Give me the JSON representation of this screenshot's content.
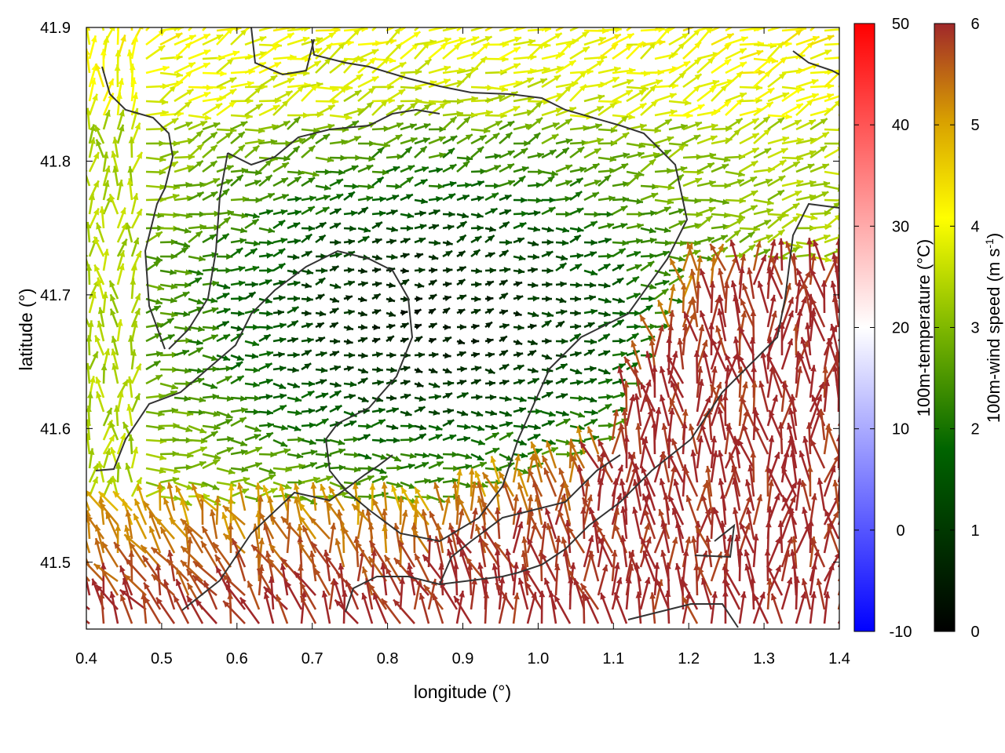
{
  "chart_data": {
    "type": "vector-field",
    "xlabel": "longitude (°)",
    "ylabel": "latitude (°)",
    "xlim": [
      0.4,
      1.4
    ],
    "ylim": [
      41.45,
      41.9
    ],
    "xticks": [
      "0.4",
      "0.5",
      "0.6",
      "0.7",
      "0.8",
      "0.9",
      "1.0",
      "1.1",
      "1.2",
      "1.3",
      "1.4"
    ],
    "yticks": [
      "41.5",
      "41.6",
      "41.7",
      "41.8",
      "41.9"
    ],
    "temperature_colorbar": {
      "label": "100m-temperature (°C)",
      "range": [
        -10,
        50
      ],
      "ticks": [
        "-10",
        "0",
        "10",
        "20",
        "30",
        "40",
        "50"
      ],
      "colors": [
        "#0000ff",
        "#ffffff",
        "#ff0000"
      ]
    },
    "wind_colorbar": {
      "label": "100m-wind speed (m s",
      "label_superscript": "-1",
      "label_suffix": ")",
      "range": [
        0,
        6
      ],
      "ticks": [
        "0",
        "1",
        "2",
        "3",
        "4",
        "5",
        "6"
      ],
      "colors": [
        "#000000",
        "#006400",
        "#7fb800",
        "#ffff00",
        "#d8a000",
        "#a0282a"
      ]
    },
    "wind_field_regions": [
      {
        "region": "south and south-east",
        "speed": "about 5-6 m/s",
        "direction": "toward north / north-north-west"
      },
      {
        "region": "centre and north",
        "speed": "about 0.5-3 m/s",
        "direction": "mostly toward east"
      },
      {
        "region": "north edge",
        "speed": "about 3-4.5 m/s",
        "direction": "toward east"
      },
      {
        "region": "west edge",
        "speed": "about 3-4 m/s",
        "direction": "toward north"
      }
    ]
  }
}
